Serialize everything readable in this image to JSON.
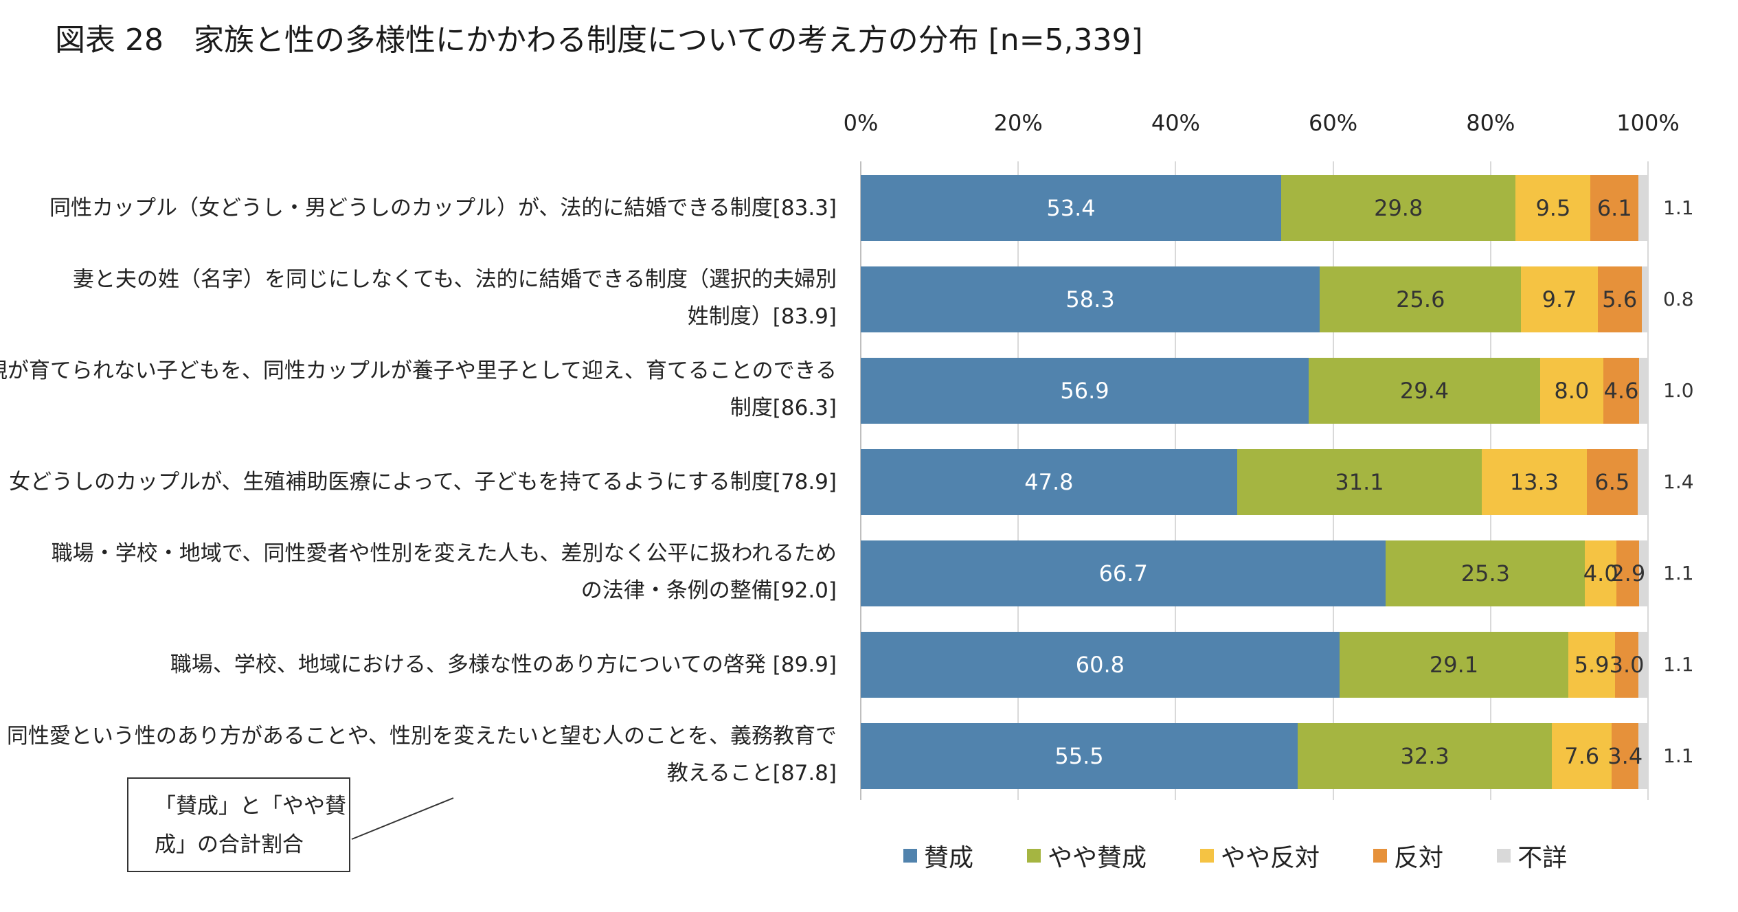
{
  "title": "図表 28　家族と性の多様性にかかわる制度についての考え方の分布 [n=5,339]",
  "note": {
    "line1": "「賛成」と「やや賛",
    "line2": "成」の合計割合"
  },
  "chart_data": {
    "type": "bar",
    "orientation": "horizontal",
    "stacked": true,
    "percent_axis": true,
    "xlim": [
      0,
      100
    ],
    "xticks": [
      "0%",
      "20%",
      "40%",
      "60%",
      "80%",
      "100%"
    ],
    "grid": true,
    "legend_position": "bottom",
    "categories": [
      {
        "lines": [
          "同性カップル（女どうし・男どうしのカップル）が、法的に結婚できる制度[83.3]"
        ]
      },
      {
        "lines": [
          "妻と夫の姓（名字）を同じにしなくても、法的に結婚できる制度（選択的夫婦別",
          "姓制度）[83.9]"
        ]
      },
      {
        "lines": [
          "親が育てられない子どもを、同性カップルが養子や里子として迎え、育てることのできる",
          "制度[86.3]"
        ]
      },
      {
        "lines": [
          "女どうしのカップルが、生殖補助医療によって、子どもを持てるようにする制度[78.9]"
        ]
      },
      {
        "lines": [
          "職場・学校・地域で、同性愛者や性別を変えた人も、差別なく公平に扱われるため",
          "の法律・条例の整備[92.0]"
        ]
      },
      {
        "lines": [
          "職場、学校、地域における、多様な性のあり方についての啓発 [89.9]"
        ]
      },
      {
        "lines": [
          "同性愛という性のあり方があることや、性別を変えたいと望む人のことを、義務教育で",
          "教えること[87.8]"
        ]
      }
    ],
    "series": [
      {
        "name": "賛成",
        "color": "#5183ad",
        "text_color": "#ffffff",
        "values": [
          53.4,
          58.3,
          56.9,
          47.8,
          66.7,
          60.8,
          55.5
        ]
      },
      {
        "name": "やや賛成",
        "color": "#a5b541",
        "text_color": "#333333",
        "values": [
          29.8,
          25.6,
          29.4,
          31.1,
          25.3,
          29.1,
          32.3
        ]
      },
      {
        "name": "やや反対",
        "color": "#f5c343",
        "text_color": "#333333",
        "values": [
          9.5,
          9.7,
          8.0,
          13.3,
          4.0,
          5.9,
          7.6
        ]
      },
      {
        "name": "反対",
        "color": "#e6913a",
        "text_color": "#333333",
        "values": [
          6.1,
          5.6,
          4.6,
          6.5,
          2.9,
          3.0,
          3.4
        ]
      },
      {
        "name": "不詳",
        "color": "#d9d9d9",
        "text_color": "#333333",
        "values": [
          1.1,
          0.8,
          1.0,
          1.4,
          1.1,
          1.1,
          1.1
        ],
        "labels_outside": true
      }
    ]
  }
}
